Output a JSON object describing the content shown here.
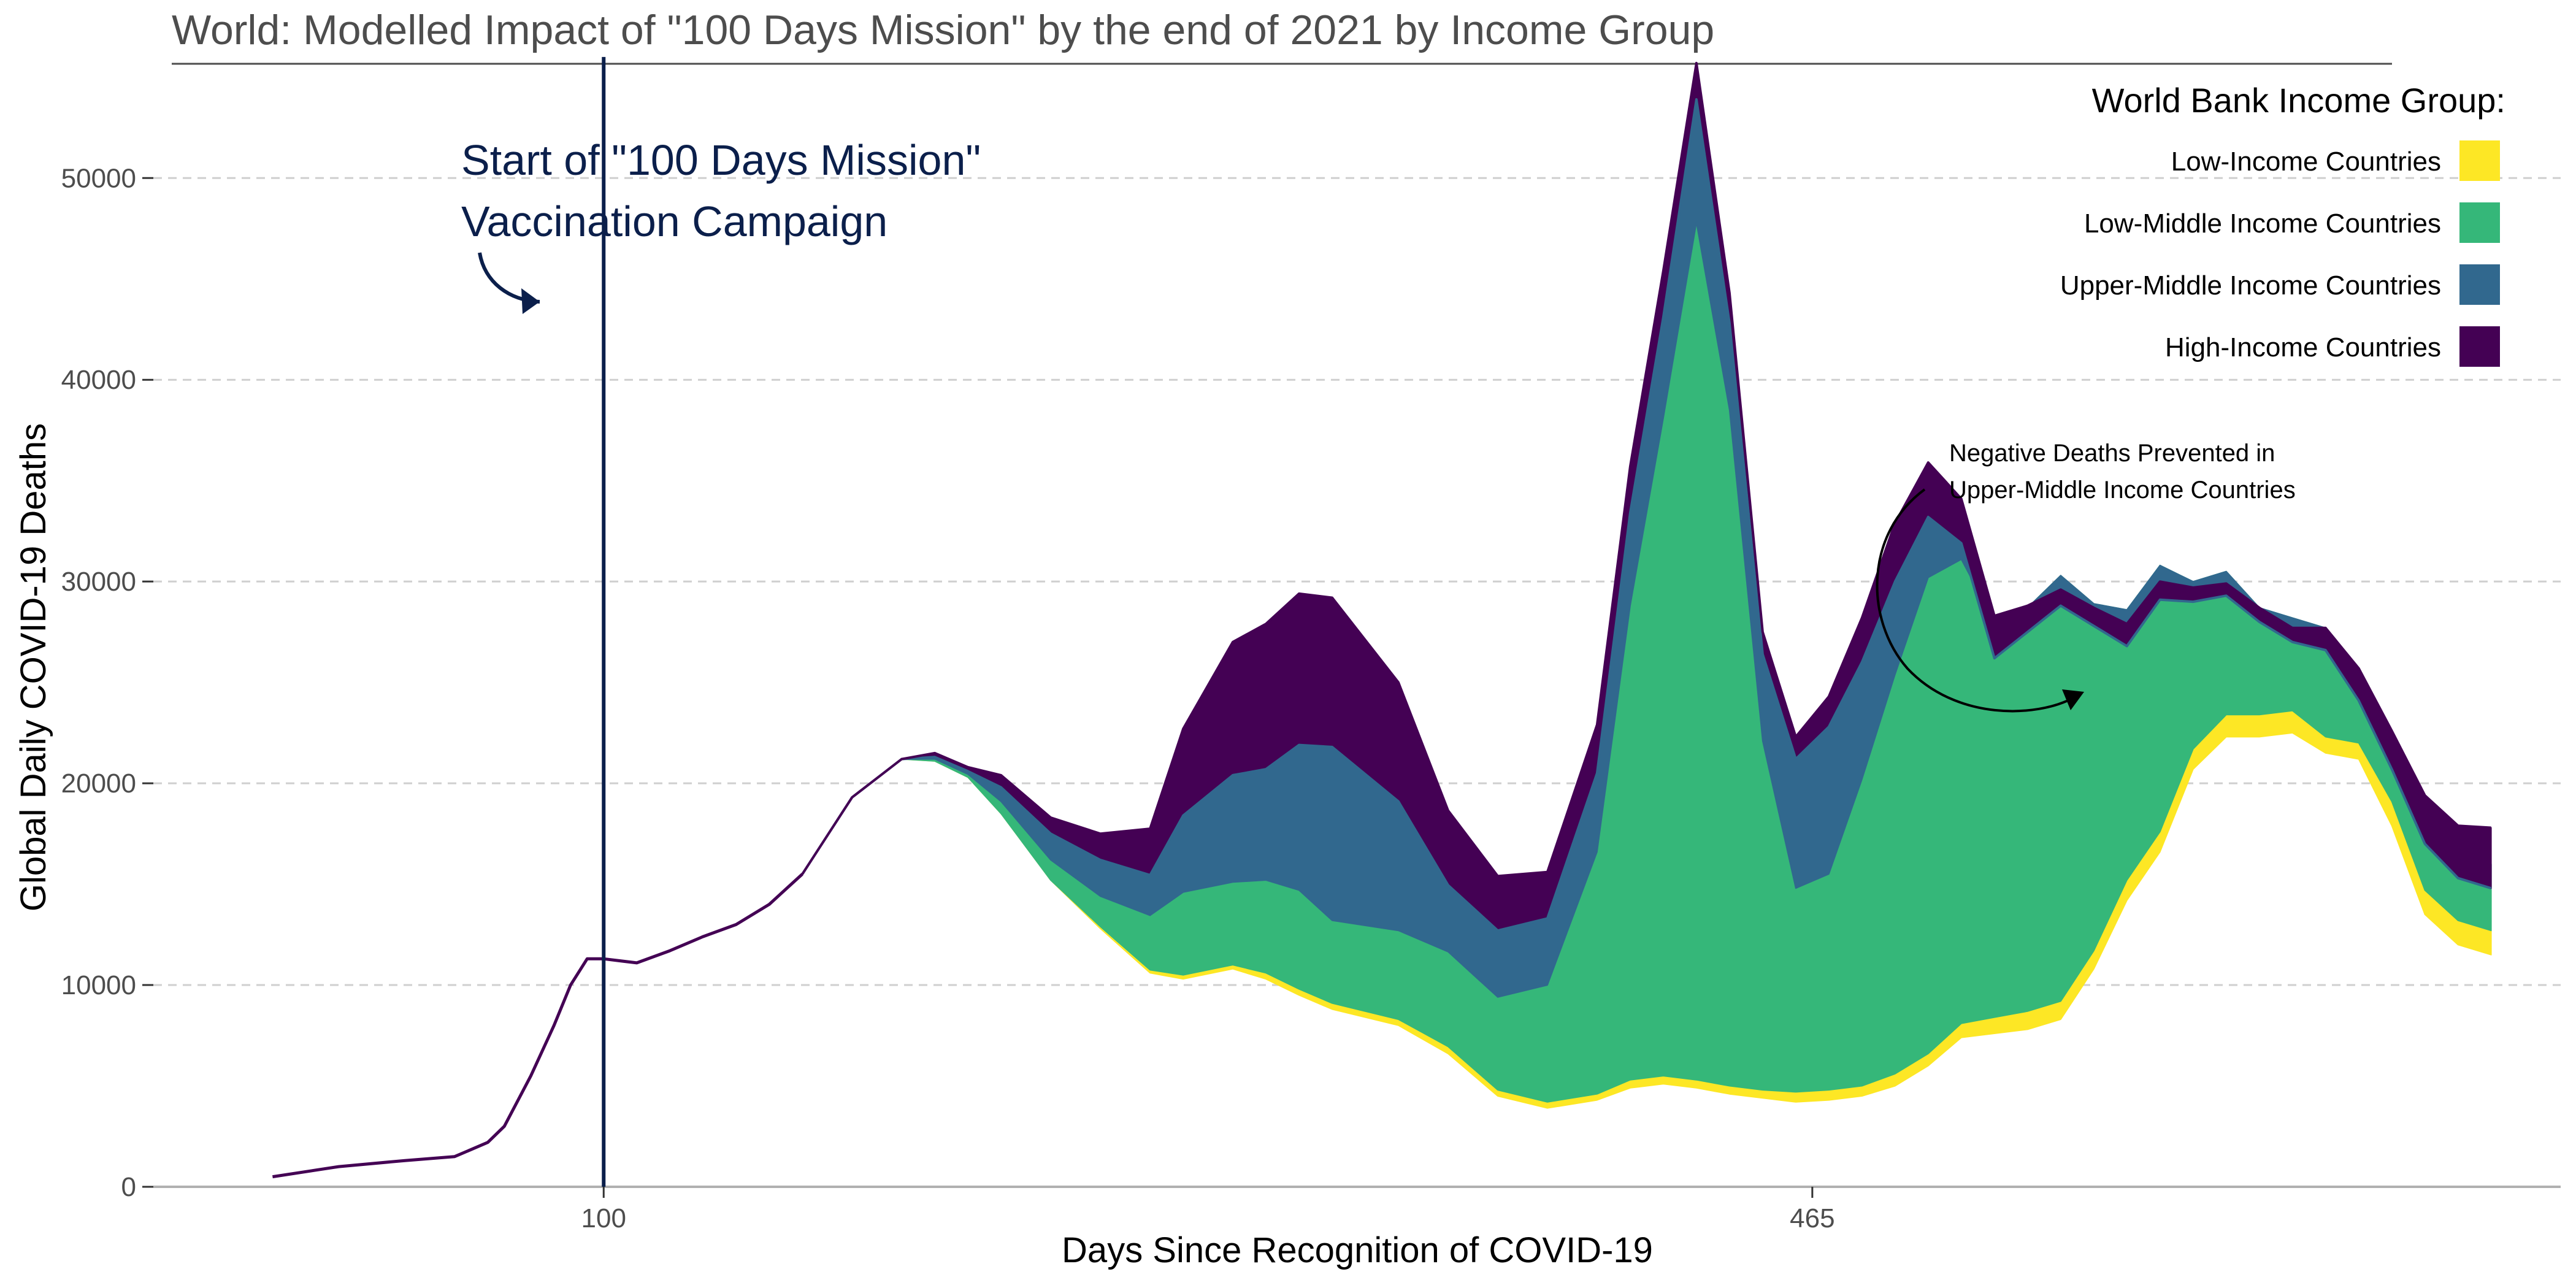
{
  "chart_data": {
    "type": "area",
    "title": "World: Modelled Impact of \"100 Days Mission\" by the end of 2021 by Income Group",
    "xlabel": "Days Since Recognition of COVID-19",
    "ylabel": "Global Daily COVID-19 Deaths",
    "xlim": [
      -36,
      691
    ],
    "ylim": [
      0,
      57000
    ],
    "x_ticks": [
      100,
      465
    ],
    "y_ticks": [
      0,
      10000,
      20000,
      30000,
      40000,
      50000
    ],
    "grid": "horizontal dashed",
    "legend": {
      "title": "World Bank Income Group:",
      "placement": "top-right",
      "entries": [
        {
          "label": "Low-Income Countries",
          "color": "#FDE725"
        },
        {
          "label": "Low-Middle Income Countries",
          "color": "#35B779"
        },
        {
          "label": "Upper-Middle Income Countries",
          "color": "#31688E"
        },
        {
          "label": "High-Income Countries",
          "color": "#440154"
        }
      ]
    },
    "annotations": {
      "campaign_day": 100,
      "campaign_label_lines": [
        "Start of \"100 Days Mission\"",
        "Vaccination Campaign"
      ],
      "negative_note_lines": [
        "Negative Deaths Prevented in",
        "Upper-Middle Income Countries"
      ]
    },
    "pre_campaign": {
      "x": [
        0,
        20,
        40,
        55,
        65,
        70,
        78,
        85,
        90,
        95,
        100,
        110,
        120,
        130,
        140,
        150,
        160
      ],
      "y": [
        500,
        1000,
        1300,
        1500,
        2200,
        3000,
        5500,
        8000,
        10000,
        11300,
        11300,
        11100,
        11700,
        12400,
        13000,
        14000,
        15500
      ]
    },
    "x": [
      160,
      175,
      190,
      200,
      210,
      220,
      235,
      250,
      265,
      275,
      290,
      300,
      310,
      320,
      340,
      355,
      370,
      385,
      400,
      410,
      420,
      430,
      440,
      450,
      460,
      470,
      480,
      490,
      500,
      510,
      520,
      530,
      540,
      550,
      560,
      570,
      580,
      590,
      600,
      610,
      620,
      630,
      640,
      650,
      660,
      670
    ],
    "baseline": [
      15500,
      19300,
      21200,
      21100,
      20300,
      18500,
      15200,
      12800,
      10600,
      10300,
      10800,
      10300,
      9500,
      8800,
      8000,
      6600,
      4500,
      3900,
      4300,
      4900,
      5100,
      4900,
      4600,
      4400,
      4200,
      4300,
      4500,
      5000,
      6000,
      7400,
      7600,
      7800,
      8300,
      10800,
      14200,
      16600,
      20700,
      22300,
      22300,
      22500,
      21500,
      21200,
      17900,
      13500,
      12000,
      11500
    ],
    "series": [
      {
        "name": "Low-Income Countries",
        "color": "#FDE725",
        "values": [
          0,
          0,
          0,
          0,
          0,
          0,
          0,
          100,
          150,
          200,
          200,
          300,
          300,
          300,
          300,
          350,
          300,
          300,
          300,
          400,
          400,
          400,
          400,
          400,
          500,
          500,
          500,
          600,
          600,
          700,
          800,
          900,
          900,
          900,
          1000,
          1000,
          1000,
          1100,
          1100,
          1100,
          800,
          800,
          1200,
          1200,
          1200,
          1200
        ]
      },
      {
        "name": "Low-Middle Income Countries",
        "color": "#35B779",
        "values": [
          0,
          0,
          0,
          100,
          150,
          600,
          1000,
          1500,
          2700,
          4100,
          4100,
          4600,
          4900,
          4100,
          4400,
          4700,
          4600,
          5800,
          12000,
          23500,
          32600,
          42500,
          33500,
          17300,
          10100,
          10700,
          15200,
          19800,
          23600,
          23000,
          19600,
          20000,
          21100,
          17200,
          13400,
          13200,
          8300,
          7100,
          5300,
          4600,
          5400,
          3300,
          2900,
          3400,
          3100,
          3300
        ]
      },
      {
        "name": "Upper-Middle Income Countries",
        "color": "#31688E",
        "values": [
          0,
          0,
          0,
          100,
          150,
          700,
          1300,
          1800,
          2000,
          3800,
          5300,
          5500,
          7200,
          8600,
          6400,
          3300,
          3300,
          3300,
          3900,
          4600,
          5000,
          6100,
          4300,
          4300,
          6400,
          7300,
          5800,
          4600,
          3000,
          800,
          -1800,
          -1200,
          -1500,
          -1100,
          -1800,
          -1700,
          -1000,
          -1200,
          -700,
          -1200,
          -1100,
          -1200,
          -1300,
          -1100,
          -1000,
          -1200
        ]
      },
      {
        "name": "High-Income Countries",
        "color": "#440154",
        "values": [
          0,
          0,
          0,
          200,
          200,
          600,
          800,
          1300,
          2300,
          4300,
          6600,
          7200,
          7500,
          7400,
          5900,
          3700,
          2700,
          2300,
          2400,
          2300,
          2300,
          1800,
          1500,
          1100,
          1100,
          1500,
          2200,
          2900,
          2700,
          2200,
          2100,
          1300,
          800,
          900,
          1100,
          900,
          700,
          600,
          700,
          700,
          1100,
          1600,
          1900,
          2400,
          2600,
          3000
        ]
      }
    ]
  }
}
